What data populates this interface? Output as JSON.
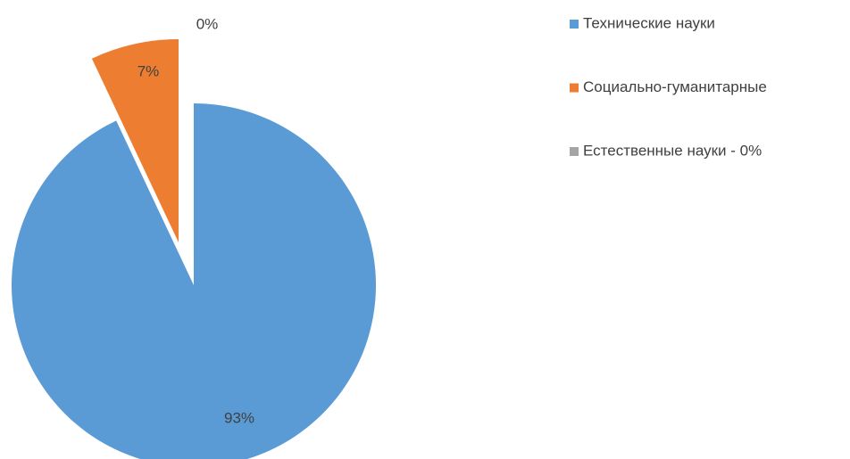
{
  "chart_data": {
    "type": "pie",
    "categories": [
      "Технические науки",
      "Социально-гуманитарные",
      "Естественные науки - 0%"
    ],
    "values": [
      93,
      7,
      0
    ],
    "value_labels": [
      "93%",
      "7%",
      "0%"
    ],
    "colors": [
      "#5b9bd5",
      "#ed7d31",
      "#a5a5a5"
    ],
    "legend": "right"
  }
}
